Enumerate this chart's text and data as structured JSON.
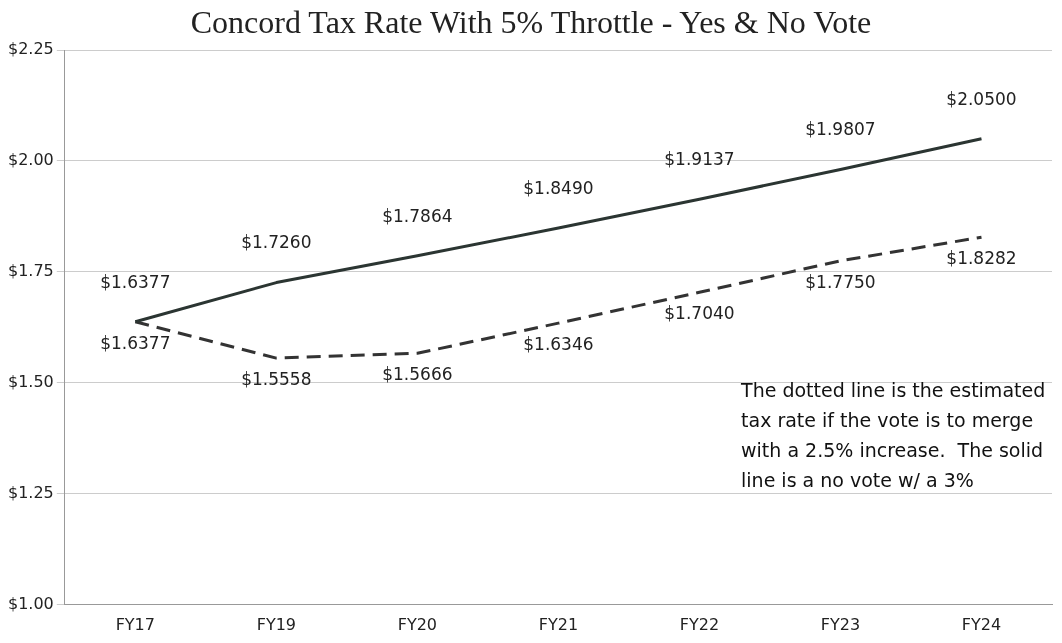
{
  "chart_data": {
    "type": "line",
    "title": "Concord Tax Rate With 5% Throttle - Yes & No Vote",
    "categories": [
      "FY17",
      "FY19",
      "FY20",
      "FY21",
      "FY22",
      "FY23",
      "FY24"
    ],
    "series": [
      {
        "color": "#2b3532",
        "line_style": "solid",
        "values": [
          1.6377,
          1.726,
          1.7864,
          1.849,
          1.9137,
          1.9807,
          2.05
        ],
        "value_labels": [
          "$1.6377",
          "$1.7260",
          "$1.7864",
          "$1.8490",
          "$1.9137",
          "$1.9807",
          "$2.0500"
        ]
      },
      {
        "color": "#333333",
        "line_style": "dashed",
        "values": [
          1.6377,
          1.5558,
          1.5666,
          1.6346,
          1.704,
          1.775,
          1.8282
        ],
        "value_labels": [
          "$1.6377",
          "$1.5558",
          "$1.5666",
          "$1.6346",
          "$1.7040",
          "$1.7750",
          "$1.8282"
        ]
      }
    ],
    "ylim": [
      1.0,
      2.25
    ],
    "yticks": [
      {
        "value": 1.0,
        "label": "$1.00"
      },
      {
        "value": 1.25,
        "label": "$1.25"
      },
      {
        "value": 1.5,
        "label": "$1.50"
      },
      {
        "value": 1.75,
        "label": "$1.75"
      },
      {
        "value": 2.0,
        "label": "$2.00"
      },
      {
        "value": 2.25,
        "label": "$2.25"
      }
    ],
    "grid": "y",
    "legend": false,
    "marker": "none",
    "annotations": [
      "The dotted line is the estimated tax rate if the vote is to merge with a 2.5% increase.  The solid line is a no vote w/ a 3%"
    ]
  }
}
